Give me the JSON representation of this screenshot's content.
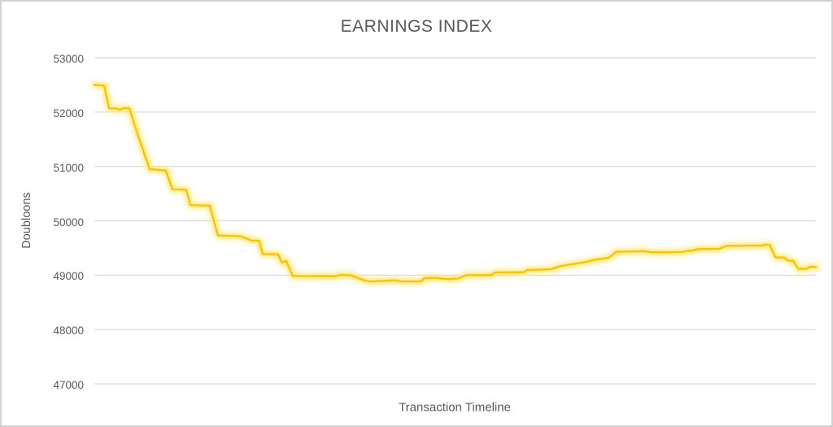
{
  "page": {
    "background": "#FFFFFF",
    "frame_border_color": "#D2D2D2"
  },
  "colors": {
    "title_text": "#595959",
    "axis_text": "#595959",
    "gridline": "#D9D9D9",
    "line": "#FFC000",
    "glow_inner": "#FFEB8A",
    "glow_outer": "#FFE75A"
  },
  "chart_data": {
    "type": "line",
    "title": "EARNINGS INDEX",
    "xlabel": "Transaction Timeline",
    "ylabel": "Doubloons",
    "ylim": [
      47000,
      53000
    ],
    "y_ticks": [
      53000,
      52000,
      51000,
      50000,
      49000,
      48000,
      47000
    ],
    "x_tick_labels": "none (unlabeled timeline axis)",
    "grid": "horizontal gridlines only",
    "legend": "none",
    "series": [
      {
        "name": "Earnings Index",
        "style": "stepped gold line with soft yellow glow",
        "points_format": "[x_percent_along_timeline, doubloons]",
        "points": [
          [
            0.0,
            52500
          ],
          [
            1.35,
            52490
          ],
          [
            2.03,
            52070
          ],
          [
            3.15,
            52065
          ],
          [
            3.49,
            52040
          ],
          [
            3.94,
            52070
          ],
          [
            4.84,
            52070
          ],
          [
            5.97,
            51600
          ],
          [
            7.66,
            50950
          ],
          [
            9.91,
            50925
          ],
          [
            10.81,
            50580
          ],
          [
            12.73,
            50570
          ],
          [
            13.29,
            50290
          ],
          [
            15.99,
            50280
          ],
          [
            17.12,
            49730
          ],
          [
            20.27,
            49715
          ],
          [
            21.73,
            49640
          ],
          [
            22.86,
            49630
          ],
          [
            23.31,
            49390
          ],
          [
            25.45,
            49385
          ],
          [
            26.01,
            49230
          ],
          [
            26.58,
            49265
          ],
          [
            27.48,
            48985
          ],
          [
            33.45,
            48980
          ],
          [
            34.01,
            49005
          ],
          [
            35.47,
            49000
          ],
          [
            36.6,
            48945
          ],
          [
            37.5,
            48900
          ],
          [
            38.29,
            48885
          ],
          [
            41.67,
            48905
          ],
          [
            42.57,
            48885
          ],
          [
            45.27,
            48885
          ],
          [
            45.72,
            48945
          ],
          [
            47.3,
            48950
          ],
          [
            48.99,
            48925
          ],
          [
            50.45,
            48940
          ],
          [
            51.58,
            49000
          ],
          [
            54.95,
            49000
          ],
          [
            55.52,
            49050
          ],
          [
            59.46,
            49055
          ],
          [
            60.02,
            49095
          ],
          [
            63.18,
            49110
          ],
          [
            63.74,
            49130
          ],
          [
            64.41,
            49160
          ],
          [
            65.88,
            49195
          ],
          [
            67.79,
            49235
          ],
          [
            69.26,
            49280
          ],
          [
            71.28,
            49320
          ],
          [
            72.3,
            49430
          ],
          [
            76.24,
            49440
          ],
          [
            77.25,
            49420
          ],
          [
            81.53,
            49425
          ],
          [
            82.21,
            49450
          ],
          [
            82.99,
            49455
          ],
          [
            83.56,
            49480
          ],
          [
            86.6,
            49485
          ],
          [
            87.61,
            49540
          ],
          [
            92.57,
            49545
          ],
          [
            93.02,
            49565
          ],
          [
            93.58,
            49555
          ],
          [
            94.37,
            49330
          ],
          [
            95.61,
            49325
          ],
          [
            96.06,
            49270
          ],
          [
            96.85,
            49265
          ],
          [
            97.52,
            49120
          ],
          [
            98.65,
            49115
          ],
          [
            99.21,
            49155
          ],
          [
            100.0,
            49150
          ]
        ]
      }
    ]
  }
}
